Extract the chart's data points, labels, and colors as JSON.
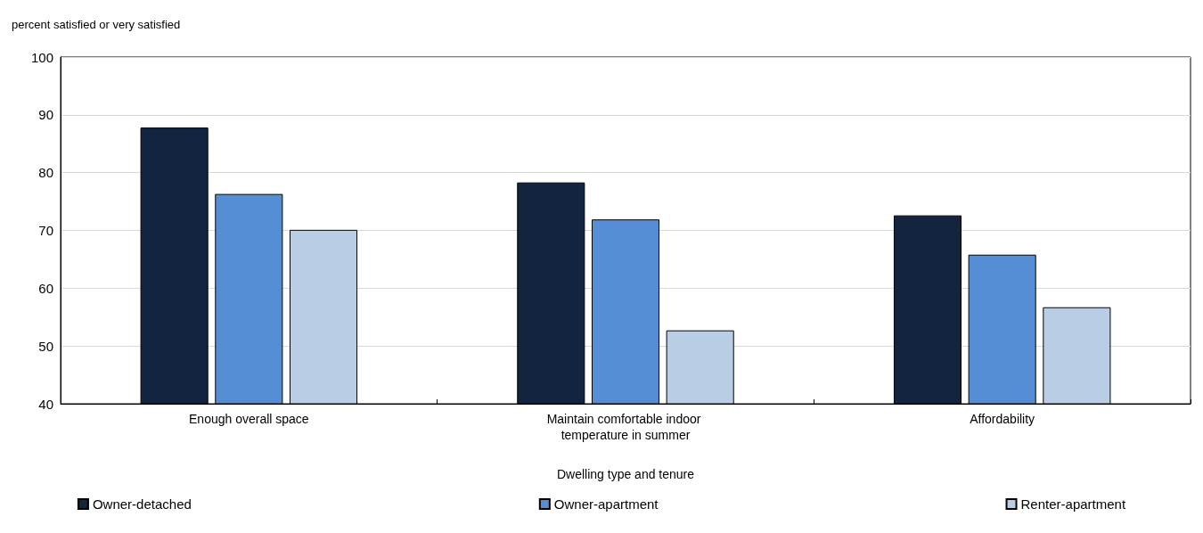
{
  "chart_data": {
    "type": "bar",
    "ylabel": "percent satisfied or very satisfied",
    "xlabel": "Dwelling type and tenure",
    "categories": [
      "Enough overall space",
      "Maintain comfortable indoor temperature in summer",
      "Affordability"
    ],
    "series": [
      {
        "name": "Owner-detached",
        "color": "#13243f",
        "values": [
          87.8,
          78.3,
          72.6
        ]
      },
      {
        "name": "Owner-apartment",
        "color": "#558ed5",
        "values": [
          76.3,
          71.9,
          65.8
        ]
      },
      {
        "name": "Renter-apartment",
        "color": "#b9cde5",
        "values": [
          70.1,
          52.7,
          56.7
        ]
      }
    ],
    "ylim": [
      40,
      100
    ],
    "yticks": [
      40,
      50,
      60,
      70,
      80,
      90,
      100
    ],
    "grid": "y",
    "legend": "bottom"
  }
}
